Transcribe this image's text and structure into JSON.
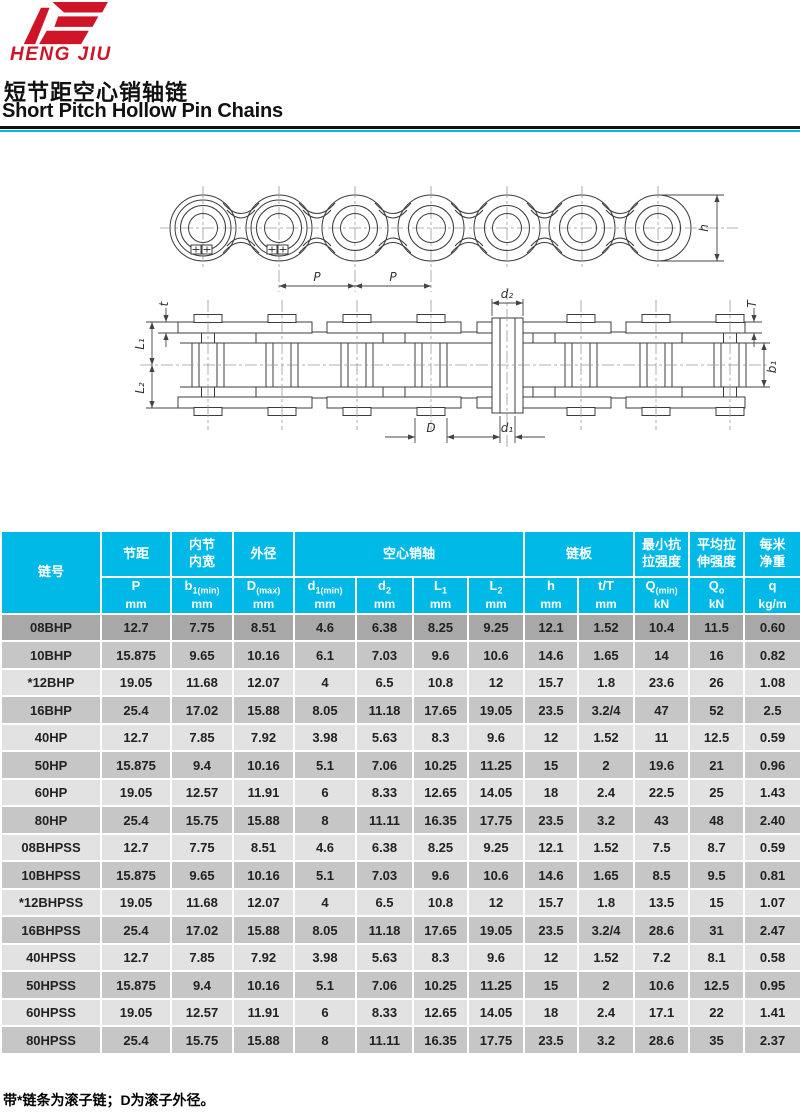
{
  "brand": {
    "name": "HENG JIU"
  },
  "titles": {
    "zh": "短节距空心销轴链",
    "en": "Short Pitch Hollow Pin Chains"
  },
  "colors": {
    "accent_cyan": "#00b9e6",
    "brand_red": "#d01428",
    "row_dark": "#a8a8a8",
    "row_mid": "#c6c6c6",
    "row_light": "#e2e2e2"
  },
  "diagram": {
    "labels": {
      "p": "P",
      "h": "h",
      "d2": "d₂",
      "t": "t",
      "L1": "L₁",
      "L2": "L₂",
      "T": "T",
      "b1": "b₁",
      "D": "D",
      "d1": "d₁"
    }
  },
  "table": {
    "groups": {
      "chain_no": "链号",
      "pitch": "节距",
      "inner_width": "内节\n内宽",
      "outer_dia": "外径",
      "hollow_pin": "空心销轴",
      "plate": "链板",
      "min_tensile": "最小抗\n拉强度",
      "avg_tensile": "平均拉\n伸强度",
      "net_weight": "每米\n净重"
    },
    "symbols": [
      {
        "s": "P",
        "sub": "",
        "u": "mm"
      },
      {
        "s": "b",
        "sub": "1(min)",
        "u": "mm"
      },
      {
        "s": "D",
        "sub": "(max)",
        "u": "mm"
      },
      {
        "s": "d",
        "sub": "1(min)",
        "u": "mm"
      },
      {
        "s": "d",
        "sub": "2",
        "u": "mm"
      },
      {
        "s": "L",
        "sub": "1",
        "u": "mm"
      },
      {
        "s": "L",
        "sub": "2",
        "u": "mm"
      },
      {
        "s": "h",
        "sub": "",
        "u": "mm"
      },
      {
        "s": "t/T",
        "sub": "",
        "u": "mm"
      },
      {
        "s": "Q",
        "sub": "(min)",
        "u": "kN"
      },
      {
        "s": "Q",
        "sub": "o",
        "u": "kN"
      },
      {
        "s": "q",
        "sub": "",
        "u": "kg/m"
      }
    ],
    "rows": [
      [
        "08BHP",
        "12.7",
        "7.75",
        "8.51",
        "4.6",
        "6.38",
        "8.25",
        "9.25",
        "12.1",
        "1.52",
        "10.4",
        "11.5",
        "0.60"
      ],
      [
        "10BHP",
        "15.875",
        "9.65",
        "10.16",
        "6.1",
        "7.03",
        "9.6",
        "10.6",
        "14.6",
        "1.65",
        "14",
        "16",
        "0.82"
      ],
      [
        "*12BHP",
        "19.05",
        "11.68",
        "12.07",
        "4",
        "6.5",
        "10.8",
        "12",
        "15.7",
        "1.8",
        "23.6",
        "26",
        "1.08"
      ],
      [
        "16BHP",
        "25.4",
        "17.02",
        "15.88",
        "8.05",
        "11.18",
        "17.65",
        "19.05",
        "23.5",
        "3.2/4",
        "47",
        "52",
        "2.5"
      ],
      [
        "40HP",
        "12.7",
        "7.85",
        "7.92",
        "3.98",
        "5.63",
        "8.3",
        "9.6",
        "12",
        "1.52",
        "11",
        "12.5",
        "0.59"
      ],
      [
        "50HP",
        "15.875",
        "9.4",
        "10.16",
        "5.1",
        "7.06",
        "10.25",
        "11.25",
        "15",
        "2",
        "19.6",
        "21",
        "0.96"
      ],
      [
        "60HP",
        "19.05",
        "12.57",
        "11.91",
        "6",
        "8.33",
        "12.65",
        "14.05",
        "18",
        "2.4",
        "22.5",
        "25",
        "1.43"
      ],
      [
        "80HP",
        "25.4",
        "15.75",
        "15.88",
        "8",
        "11.11",
        "16.35",
        "17.75",
        "23.5",
        "3.2",
        "43",
        "48",
        "2.40"
      ],
      [
        "08BHPSS",
        "12.7",
        "7.75",
        "8.51",
        "4.6",
        "6.38",
        "8.25",
        "9.25",
        "12.1",
        "1.52",
        "7.5",
        "8.7",
        "0.59"
      ],
      [
        "10BHPSS",
        "15.875",
        "9.65",
        "10.16",
        "5.1",
        "7.03",
        "9.6",
        "10.6",
        "14.6",
        "1.65",
        "8.5",
        "9.5",
        "0.81"
      ],
      [
        "*12BHPSS",
        "19.05",
        "11.68",
        "12.07",
        "4",
        "6.5",
        "10.8",
        "12",
        "15.7",
        "1.8",
        "13.5",
        "15",
        "1.07"
      ],
      [
        "16BHPSS",
        "25.4",
        "17.02",
        "15.88",
        "8.05",
        "11.18",
        "17.65",
        "19.05",
        "23.5",
        "3.2/4",
        "28.6",
        "31",
        "2.47"
      ],
      [
        "40HPSS",
        "12.7",
        "7.85",
        "7.92",
        "3.98",
        "5.63",
        "8.3",
        "9.6",
        "12",
        "1.52",
        "7.2",
        "8.1",
        "0.58"
      ],
      [
        "50HPSS",
        "15.875",
        "9.4",
        "10.16",
        "5.1",
        "7.06",
        "10.25",
        "11.25",
        "15",
        "2",
        "10.6",
        "12.5",
        "0.95"
      ],
      [
        "60HPSS",
        "19.05",
        "12.57",
        "11.91",
        "6",
        "8.33",
        "12.65",
        "14.05",
        "18",
        "2.4",
        "17.1",
        "22",
        "1.41"
      ],
      [
        "80HPSS",
        "25.4",
        "15.75",
        "15.88",
        "8",
        "11.11",
        "16.35",
        "17.75",
        "23.5",
        "3.2",
        "28.6",
        "35",
        "2.37"
      ]
    ]
  },
  "footnote": "带*链条为滚子链；D为滚子外径。"
}
